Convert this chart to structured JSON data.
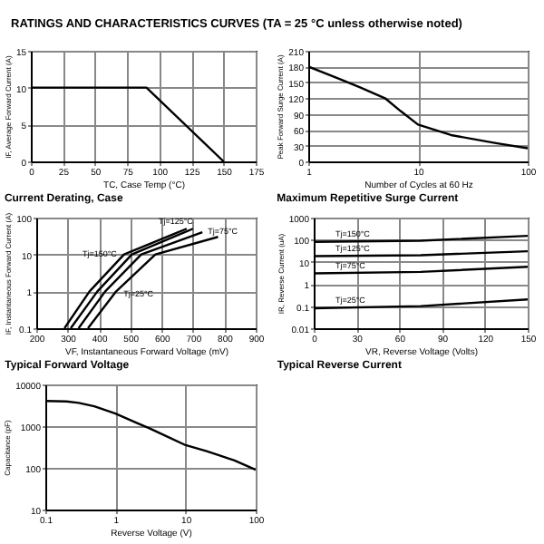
{
  "chart_data": [
    {
      "type": "line",
      "title": "Current Derating, Case",
      "annotations": [
        "RATINGS AND CHARACTERISTICS CURVES (TA = 25 °C unless otherwise noted)"
      ],
      "xlabel": "TC, Case Temp (°C)",
      "ylabel": "IF, Average Forward Current (A)",
      "xlim": [
        0,
        175
      ],
      "xticks": [
        0,
        25,
        50,
        75,
        100,
        125,
        150,
        175
      ],
      "ylim": [
        0,
        15
      ],
      "yticks": [
        0,
        5,
        10,
        15
      ],
      "grid": true,
      "marker": "none",
      "line_style": "solid",
      "series": [
        {
          "color": "#000000",
          "x": [
            0,
            90,
            150
          ],
          "values": [
            10,
            10,
            0
          ]
        }
      ]
    },
    {
      "type": "line",
      "title": "Maximum Repetitive Surge Current",
      "xlabel": "Number of Cycles at 60 Hz",
      "ylabel": "Peak Forward Surge Current (A)",
      "log": "x",
      "xlim": [
        1,
        100
      ],
      "xticks": [
        1,
        10,
        100
      ],
      "ylim": [
        0,
        210
      ],
      "yticks": [
        0,
        30,
        60,
        90,
        120,
        150,
        180,
        210
      ],
      "grid": true,
      "marker": "none",
      "line_style": "solid",
      "series": [
        {
          "color": "#000000",
          "x": [
            1,
            2,
            3,
            5,
            7,
            10,
            20,
            50,
            100
          ],
          "values": [
            180,
            155,
            140,
            120,
            95,
            70,
            50,
            35,
            25
          ]
        }
      ]
    },
    {
      "type": "line",
      "title": "Typical Forward Voltage",
      "xlabel": "VF, Instantaneous Forward Voltage (mV)",
      "ylabel": "IF, Instantaneous Forward Current (A)",
      "log": "y",
      "xlim": [
        200,
        900
      ],
      "xticks": [
        200,
        300,
        400,
        500,
        600,
        700,
        800,
        900
      ],
      "ylim": [
        0.1,
        100
      ],
      "yticks": [
        0.1,
        1,
        10,
        100
      ],
      "grid": true,
      "marker": "none",
      "line_style": "solid",
      "series": [
        {
          "name": "Tj=150°C",
          "color": "#000000",
          "x": [
            290,
            370,
            480,
            680
          ],
          "values": [
            0.1,
            1,
            10,
            50
          ]
        },
        {
          "name": "Tj=125°C",
          "color": "#000000",
          "x": [
            310,
            395,
            505,
            700
          ],
          "values": [
            0.1,
            1,
            10,
            50
          ]
        },
        {
          "name": "Tj=75°C",
          "color": "#000000",
          "x": [
            335,
            420,
            535,
            730
          ],
          "values": [
            0.1,
            1,
            10,
            40
          ]
        },
        {
          "name": "Tj=25°C",
          "color": "#000000",
          "x": [
            365,
            455,
            580,
            780
          ],
          "values": [
            0.1,
            1,
            10,
            30
          ]
        }
      ]
    },
    {
      "type": "line",
      "title": "Typical Reverse Current",
      "xlabel": "VR, Reverse Voltage (Volts)",
      "ylabel": "IR, Reverse Current (uA)",
      "log": "y",
      "xlim": [
        0,
        150
      ],
      "xticks": [
        0,
        30,
        60,
        90,
        120,
        150
      ],
      "ylim": [
        0.01,
        1000
      ],
      "yticks": [
        0.01,
        0.1,
        1,
        10,
        100,
        1000
      ],
      "grid": true,
      "marker": "none",
      "line_style": "solid",
      "series": [
        {
          "name": "Tj=150°C",
          "color": "#000000",
          "x": [
            0,
            75,
            150
          ],
          "values": [
            80,
            90,
            150
          ]
        },
        {
          "name": "Tj=125°C",
          "color": "#000000",
          "x": [
            0,
            75,
            150
          ],
          "values": [
            18,
            20,
            30
          ]
        },
        {
          "name": "Tj=75°C",
          "color": "#000000",
          "x": [
            0,
            75,
            150
          ],
          "values": [
            3,
            3.5,
            6
          ]
        },
        {
          "name": "Tj=25°C",
          "color": "#000000",
          "x": [
            0,
            75,
            150
          ],
          "values": [
            0.08,
            0.1,
            0.2
          ]
        }
      ]
    },
    {
      "type": "line",
      "xlabel": "Reverse Voltage (V)",
      "ylabel": "Capacitance (pF)",
      "log": "xy",
      "xlim": [
        0.1,
        100
      ],
      "xticks": [
        0.1,
        1,
        10,
        100
      ],
      "ylim": [
        10,
        10000
      ],
      "yticks": [
        10,
        100,
        1000,
        10000
      ],
      "grid": true,
      "marker": "none",
      "line_style": "solid",
      "series": [
        {
          "color": "#000000",
          "x": [
            0.1,
            0.2,
            0.3,
            0.5,
            1,
            2,
            3,
            5,
            10,
            20,
            30,
            50,
            100
          ],
          "values": [
            4000,
            3900,
            3600,
            3000,
            2000,
            1200,
            900,
            600,
            350,
            250,
            200,
            150,
            90
          ]
        }
      ]
    }
  ]
}
